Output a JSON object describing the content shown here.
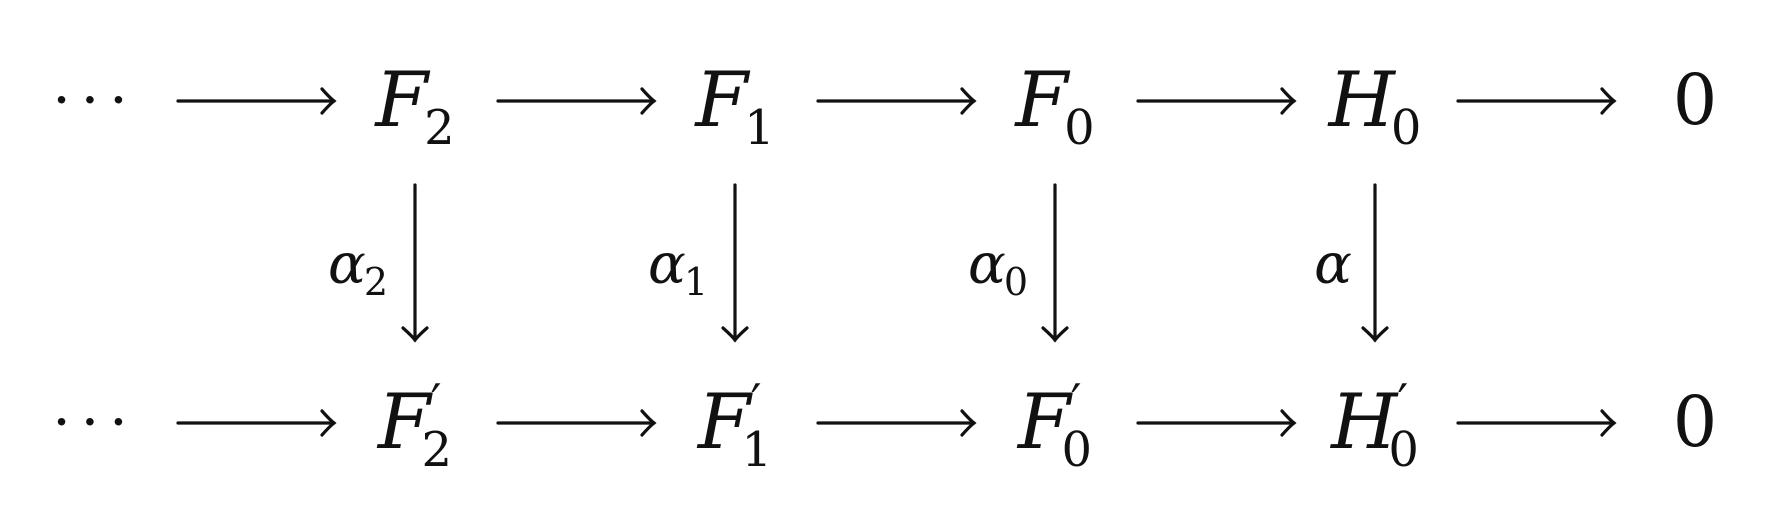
{
  "diagram": {
    "top_row": [
      {
        "kind": "dots",
        "text": "···"
      },
      {
        "kind": "sym",
        "base": "F",
        "sub": "2",
        "prime": ""
      },
      {
        "kind": "sym",
        "base": "F",
        "sub": "1",
        "prime": ""
      },
      {
        "kind": "sym",
        "base": "F",
        "sub": "0",
        "prime": ""
      },
      {
        "kind": "sym",
        "base": "H",
        "sub": "0",
        "prime": ""
      },
      {
        "kind": "zero",
        "text": "0"
      }
    ],
    "bottom_row": [
      {
        "kind": "dots",
        "text": "···"
      },
      {
        "kind": "sym",
        "base": "F",
        "sub": "2",
        "prime": "′"
      },
      {
        "kind": "sym",
        "base": "F",
        "sub": "1",
        "prime": "′"
      },
      {
        "kind": "sym",
        "base": "F",
        "sub": "0",
        "prime": "′"
      },
      {
        "kind": "sym",
        "base": "H",
        "sub": "0",
        "prime": "′"
      },
      {
        "kind": "zero",
        "text": "0"
      }
    ],
    "vertical_maps": [
      {
        "base": "α",
        "sub": "2"
      },
      {
        "base": "α",
        "sub": "1"
      },
      {
        "base": "α",
        "sub": "0"
      },
      {
        "base": "α",
        "sub": ""
      }
    ]
  }
}
